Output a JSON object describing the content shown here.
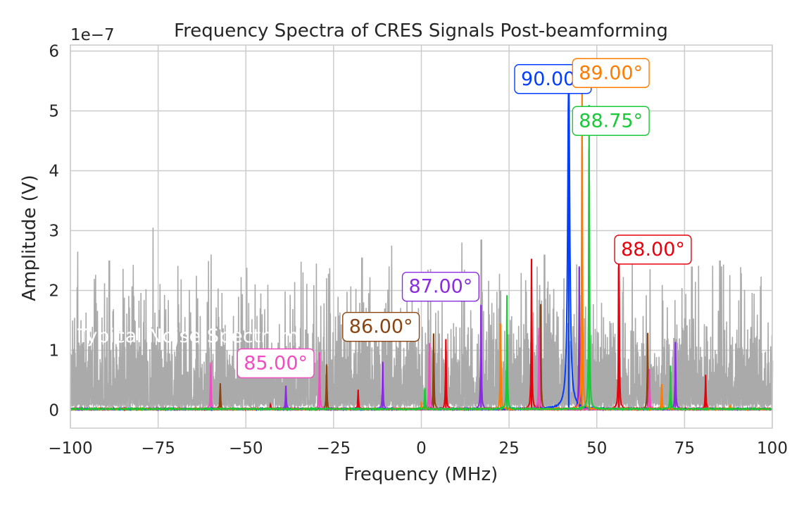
{
  "chart_data": {
    "type": "line",
    "title": "Frequency Spectra of CRES Signals Post-beamforming",
    "xlabel": "Frequency (MHz)",
    "ylabel": "Amplitude (V)",
    "y_offset_label": "1e−7",
    "xlim": [
      -100,
      100
    ],
    "ylim": [
      -0.3,
      6.1
    ],
    "x_ticks": [
      -100,
      -75,
      -50,
      -25,
      0,
      25,
      50,
      75,
      100
    ],
    "x_tick_labels": [
      "−100",
      "−75",
      "−50",
      "−25",
      "0",
      "25",
      "50",
      "75",
      "100"
    ],
    "y_ticks": [
      0,
      1,
      2,
      3,
      4,
      5,
      6
    ],
    "y_tick_labels": [
      "0",
      "1",
      "2",
      "3",
      "4",
      "5",
      "6"
    ],
    "grid": true,
    "noise_label": "Typical Noise Spectrum",
    "noise": {
      "color": "#aaaaaa",
      "typical_max": 2.0,
      "tall_spikes": [
        {
          "x": -76.5,
          "y": 3.05
        },
        {
          "x": 17.0,
          "y": 2.85
        },
        {
          "x": 11.5,
          "y": 2.8
        },
        {
          "x": -8.5,
          "y": 2.75
        },
        {
          "x": -98.0,
          "y": 2.65
        },
        {
          "x": -60.0,
          "y": 2.6
        },
        {
          "x": 60.0,
          "y": 2.6
        },
        {
          "x": 35.0,
          "y": 2.6
        },
        {
          "x": -17.0,
          "y": 2.55
        },
        {
          "x": -89.0,
          "y": 2.5
        },
        {
          "x": 85.0,
          "y": 2.5
        },
        {
          "x": -30.0,
          "y": 2.45
        },
        {
          "x": 77.0,
          "y": 2.4
        }
      ]
    },
    "series": [
      {
        "color": "#e8000b",
        "peaks": [
          {
            "x": 56.3,
            "y": 2.93
          },
          {
            "x": 31.4,
            "y": 2.53
          },
          {
            "x": 7.0,
            "y": 1.17
          },
          {
            "x": -18.0,
            "y": 0.32
          },
          {
            "x": 81.0,
            "y": 0.57
          },
          {
            "x": -43.0,
            "y": 0.08
          }
        ]
      },
      {
        "color": "#8b2be2",
        "peaks": [
          {
            "x": 45.0,
            "y": 2.38
          },
          {
            "x": 17.0,
            "y": 1.75
          },
          {
            "x": 72.4,
            "y": 1.14
          },
          {
            "x": -11.0,
            "y": 0.78
          },
          {
            "x": -38.6,
            "y": 0.41
          }
        ]
      },
      {
        "color": "#8b4513",
        "peaks": [
          {
            "x": 34.0,
            "y": 1.75
          },
          {
            "x": 3.5,
            "y": 1.27
          },
          {
            "x": 64.5,
            "y": 1.28
          },
          {
            "x": -27.0,
            "y": 0.75
          },
          {
            "x": -57.3,
            "y": 0.45
          }
        ]
      },
      {
        "color": "#f14cc1",
        "peaks": [
          {
            "x": 33.5,
            "y": 1.36
          },
          {
            "x": 2.3,
            "y": 1.12
          },
          {
            "x": -29.0,
            "y": 0.95
          },
          {
            "x": 65.0,
            "y": 0.67
          },
          {
            "x": -60.0,
            "y": 0.77
          }
        ]
      },
      {
        "color": "#023eff",
        "peaks": [
          {
            "x": 42.0,
            "y": 5.65
          }
        ],
        "lorentz_width": 0.35
      },
      {
        "color": "#ff7c00",
        "peaks": [
          {
            "x": 45.8,
            "y": 5.8
          },
          {
            "x": 22.6,
            "y": 1.45
          },
          {
            "x": 68.5,
            "y": 0.42
          },
          {
            "x": 0.0,
            "y": 0.12
          },
          {
            "x": 88.0,
            "y": 0.07
          }
        ]
      },
      {
        "color": "#1ac938",
        "peaks": [
          {
            "x": 47.8,
            "y": 5.1
          },
          {
            "x": 24.4,
            "y": 1.92
          },
          {
            "x": 71.0,
            "y": 0.72
          },
          {
            "x": 1.0,
            "y": 0.35
          }
        ]
      }
    ],
    "annotations": [
      {
        "text": "90.00°",
        "color": "#023eff",
        "x": 37.5,
        "y": 5.55
      },
      {
        "text": "89.00°",
        "color": "#ff7c00",
        "x": 54.0,
        "y": 5.65
      },
      {
        "text": "88.75°",
        "color": "#1ac938",
        "x": 54.0,
        "y": 4.85
      },
      {
        "text": "88.00°",
        "color": "#e8000b",
        "x": 66.0,
        "y": 2.7
      },
      {
        "text": "87.00°",
        "color": "#8b2be2",
        "x": 5.5,
        "y": 2.08
      },
      {
        "text": "86.00°",
        "color": "#8b4513",
        "x": -11.5,
        "y": 1.41
      },
      {
        "text": "85.00°",
        "color": "#f14cc1",
        "x": -41.5,
        "y": 0.8
      }
    ]
  }
}
